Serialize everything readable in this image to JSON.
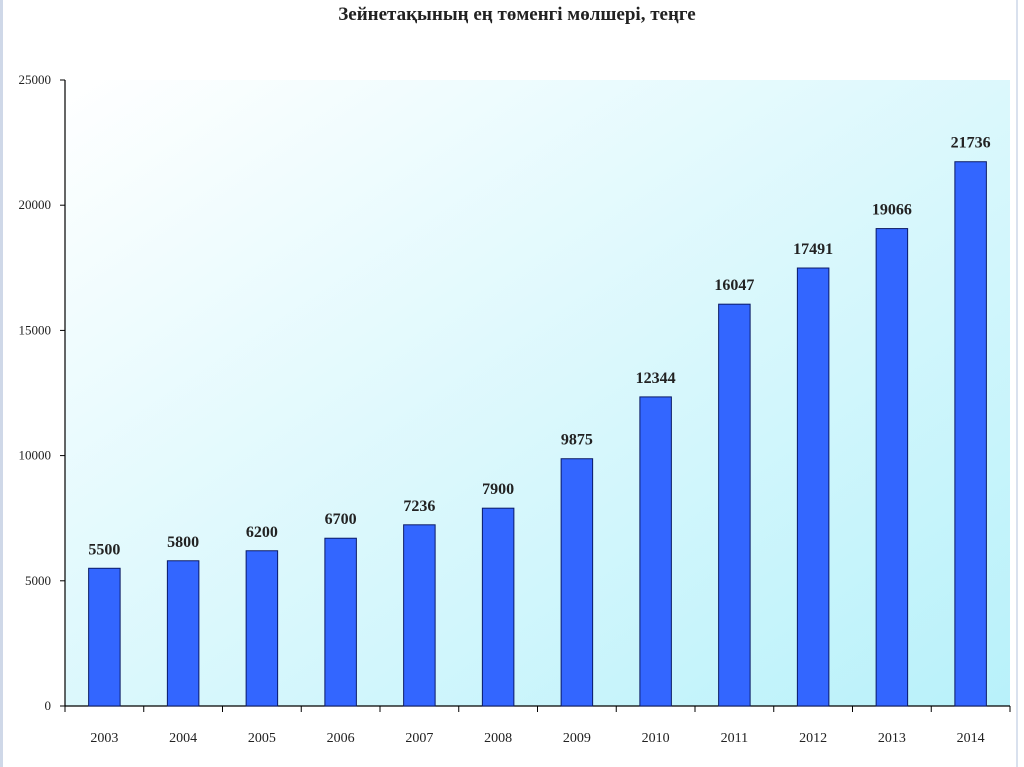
{
  "chart_data": {
    "type": "bar",
    "title": "Зейнетақының ең төменгі мөлшері, теңге",
    "xlabel": "",
    "ylabel": "",
    "categories": [
      "2003",
      "2004",
      "2005",
      "2006",
      "2007",
      "2008",
      "2009",
      "2010",
      "2011",
      "2012",
      "2013",
      "2014"
    ],
    "values": [
      5500,
      5800,
      6200,
      6700,
      7236,
      7900,
      9875,
      12344,
      16047,
      17491,
      19066,
      21736
    ],
    "data_labels": [
      "5500",
      "5800",
      "6200",
      "6700",
      "7236",
      "7900",
      "9875",
      "12344",
      "16047",
      "17491",
      "19066",
      "21736"
    ],
    "ylim": [
      0,
      25000
    ],
    "yticks": [
      "0",
      "5000",
      "10000",
      "15000",
      "20000",
      "25000"
    ],
    "ytick_values": [
      0,
      5000,
      10000,
      15000,
      20000,
      25000
    ],
    "grid": false,
    "legend": "none",
    "colors": {
      "bar": "#3366ff",
      "bar_stroke": "#0a1a66",
      "plot_bg_top": "#ffffff",
      "plot_bg_bottom": "#bdf3fb",
      "axis": "#000000"
    }
  }
}
